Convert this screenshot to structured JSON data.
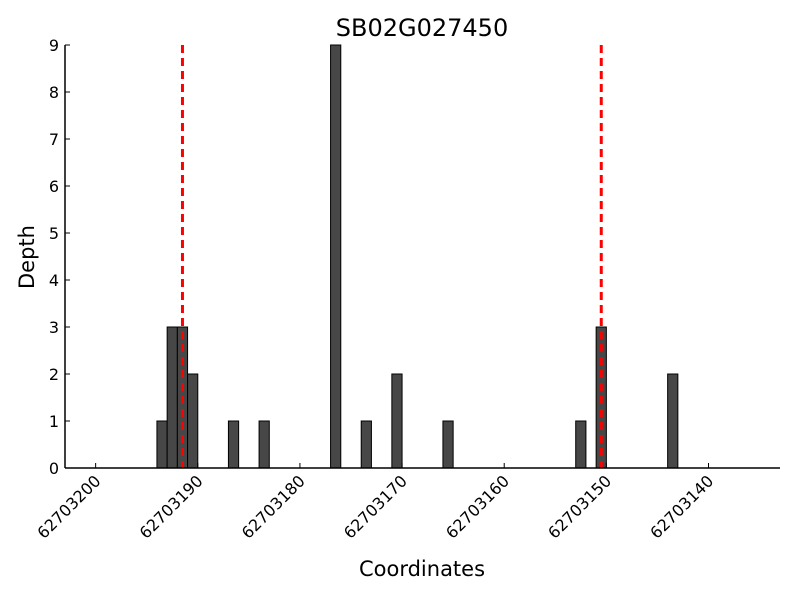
{
  "chart_data": {
    "type": "bar",
    "title": "SB02G027450",
    "xlabel": "Coordinates",
    "ylabel": "Depth",
    "x": [
      62703193,
      62703192,
      62703191,
      62703190,
      62703186,
      62703183,
      62703176,
      62703173,
      62703170,
      62703165,
      62703152,
      62703150,
      62703143
    ],
    "values": [
      1,
      3,
      3,
      2,
      1,
      1,
      9,
      1,
      2,
      1,
      1,
      3,
      2
    ],
    "bar_width": 1,
    "color": "#474747",
    "vlines": [
      62703191.5,
      62703150.5
    ],
    "vline_color": "#ff0000",
    "xlim": [
      62703203,
      62703133
    ],
    "xticks": [
      62703200,
      62703190,
      62703180,
      62703170,
      62703160,
      62703150,
      62703140
    ],
    "ylim": [
      0,
      9
    ],
    "yticks": [
      0,
      1,
      2,
      3,
      4,
      5,
      6,
      7,
      8,
      9
    ]
  }
}
